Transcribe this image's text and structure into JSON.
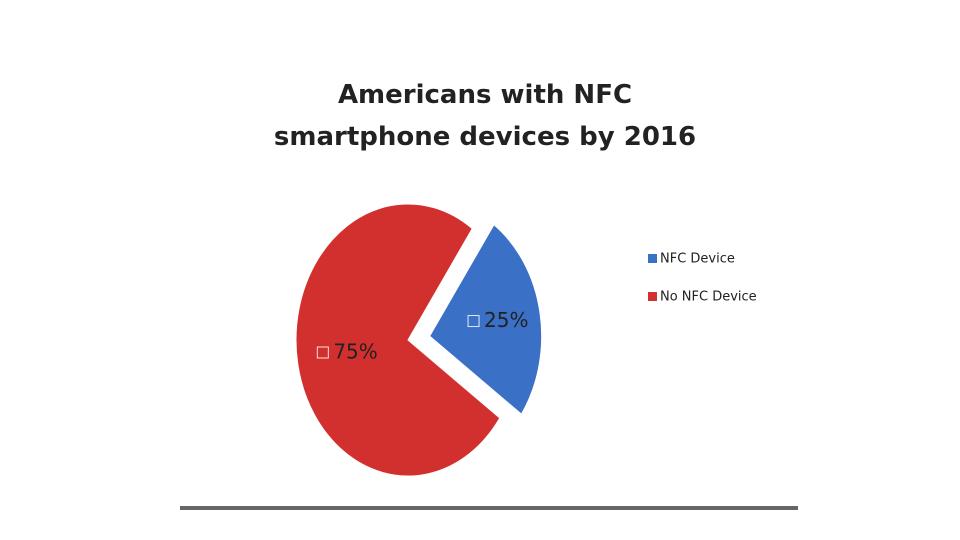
{
  "chart_data": {
    "type": "pie",
    "title": "Americans with NFC smartphone devices by 2016",
    "categories": [
      "NFC Device",
      "No NFC Device"
    ],
    "values": [
      25,
      75
    ],
    "value_labels": [
      "25%",
      "75%"
    ],
    "colors": [
      "#3a70c6",
      "#d2302e"
    ],
    "legend": "right"
  }
}
